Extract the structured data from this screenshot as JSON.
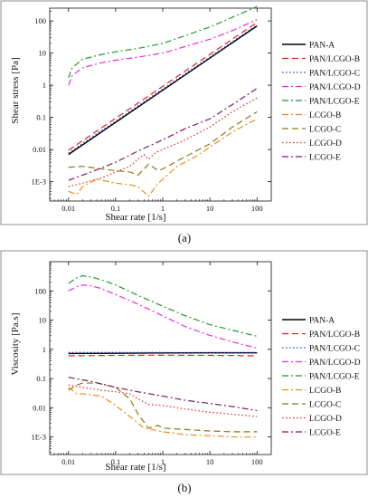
{
  "panels": [
    {
      "caption": "(a)",
      "chart_data": {
        "type": "line",
        "xlabel": "Shear rate [1/s]",
        "ylabel": "Shear stress [Pa]",
        "xscale": "log",
        "yscale": "log",
        "xlim": [
          0.004,
          200
        ],
        "ylim": [
          0.00025,
          250
        ],
        "x_ticks": [
          0.01,
          0.1,
          1,
          10,
          100
        ],
        "x_tick_labels": [
          "0.01",
          "0.1",
          "1",
          "10",
          "100"
        ],
        "y_ticks": [
          0.001,
          0.01,
          0.1,
          1,
          10,
          100
        ],
        "y_tick_labels": [
          "1E-3",
          "0.01",
          "0.1",
          "1",
          "10",
          "100"
        ],
        "legend_position": "right",
        "grid": false,
        "series": [
          {
            "name": "PAN-A",
            "color": "#000000",
            "dash": "solid",
            "points": [
              [
                0.01,
                0.007
              ],
              [
                100,
                70
              ]
            ]
          },
          {
            "name": "PAN/LCGO-B",
            "color": "#e8221e",
            "dash": "dash",
            "points": [
              [
                0.01,
                0.0095
              ],
              [
                100,
                90
              ]
            ]
          },
          {
            "name": "PAN/LCGO-C",
            "color": "#2446c8",
            "dash": "dot",
            "points": [
              [
                0.01,
                0.0078
              ],
              [
                100,
                75
              ]
            ]
          },
          {
            "name": "PAN/LCGO-D",
            "color": "#e62ee0",
            "dash": "dashdot",
            "points": [
              [
                0.01,
                1.0
              ],
              [
                0.012,
                2.0
              ],
              [
                0.02,
                3.5
              ],
              [
                0.05,
                5
              ],
              [
                0.1,
                6
              ],
              [
                0.3,
                7.5
              ],
              [
                1,
                10
              ],
              [
                3,
                16
              ],
              [
                10,
                27
              ],
              [
                30,
                50
              ],
              [
                100,
                110
              ]
            ]
          },
          {
            "name": "PAN/LCGO-E",
            "color": "#1f9a2a",
            "dash": "dashdot",
            "points": [
              [
                0.01,
                1.7
              ],
              [
                0.012,
                3.5
              ],
              [
                0.02,
                6.5
              ],
              [
                0.05,
                9
              ],
              [
                0.1,
                11
              ],
              [
                0.3,
                14
              ],
              [
                1,
                20
              ],
              [
                3,
                35
              ],
              [
                10,
                65
              ],
              [
                30,
                130
              ],
              [
                100,
                280
              ]
            ]
          },
          {
            "name": "LCGO-B",
            "color": "#f08c1a",
            "dash": "dashdot",
            "points": [
              [
                0.01,
                0.0005
              ],
              [
                0.015,
                0.0004
              ],
              [
                0.02,
                0.0007
              ],
              [
                0.04,
                0.0012
              ],
              [
                0.07,
                0.001
              ],
              [
                0.1,
                0.0009
              ],
              [
                0.2,
                0.0008
              ],
              [
                0.3,
                0.0007
              ],
              [
                0.5,
                0.00035
              ],
              [
                0.8,
                0.0009
              ],
              [
                1,
                0.0012
              ],
              [
                2,
                0.003
              ],
              [
                5,
                0.006
              ],
              [
                10,
                0.012
              ],
              [
                30,
                0.035
              ],
              [
                100,
                0.09
              ]
            ]
          },
          {
            "name": "LCGO-C",
            "color": "#8a7a12",
            "dash": "dash",
            "points": [
              [
                0.01,
                0.0028
              ],
              [
                0.02,
                0.003
              ],
              [
                0.05,
                0.0025
              ],
              [
                0.1,
                0.0022
              ],
              [
                0.2,
                0.002
              ],
              [
                0.3,
                0.0016
              ],
              [
                0.5,
                0.0035
              ],
              [
                0.8,
                0.0022
              ],
              [
                1,
                0.0025
              ],
              [
                3,
                0.006
              ],
              [
                10,
                0.015
              ],
              [
                30,
                0.05
              ],
              [
                100,
                0.15
              ]
            ]
          },
          {
            "name": "LCGO-D",
            "color": "#e8221e",
            "dash": "dot",
            "points": [
              [
                0.01,
                0.0007
              ],
              [
                0.02,
                0.0009
              ],
              [
                0.05,
                0.0013
              ],
              [
                0.1,
                0.002
              ],
              [
                0.2,
                0.003
              ],
              [
                0.3,
                0.005
              ],
              [
                0.4,
                0.007
              ],
              [
                0.5,
                0.005
              ],
              [
                0.7,
                0.008
              ],
              [
                1,
                0.01
              ],
              [
                3,
                0.02
              ],
              [
                10,
                0.05
              ],
              [
                30,
                0.15
              ],
              [
                100,
                0.4
              ]
            ]
          },
          {
            "name": "LCGO-E",
            "color": "#7a1a6e",
            "dash": "dashdot",
            "points": [
              [
                0.01,
                0.0011
              ],
              [
                0.03,
                0.002
              ],
              [
                0.1,
                0.004
              ],
              [
                0.3,
                0.009
              ],
              [
                1,
                0.02
              ],
              [
                3,
                0.045
              ],
              [
                10,
                0.09
              ],
              [
                30,
                0.25
              ],
              [
                100,
                0.8
              ]
            ]
          }
        ]
      }
    },
    {
      "caption": "(b)",
      "chart_data": {
        "type": "line",
        "xlabel": "Shear rate [1/s]",
        "ylabel": "Viscosity [Pa.s]",
        "xscale": "log",
        "yscale": "log",
        "xlim": [
          0.004,
          200
        ],
        "ylim": [
          0.00025,
          1000
        ],
        "x_ticks": [
          0.01,
          0.1,
          1,
          10,
          100
        ],
        "x_tick_labels": [
          "0.01",
          "0.1",
          "1",
          "10",
          "100"
        ],
        "y_ticks": [
          0.001,
          0.01,
          0.1,
          1,
          10,
          100
        ],
        "y_tick_labels": [
          "1E-3",
          "0.01",
          "0.1",
          "1",
          "10",
          "100"
        ],
        "legend_position": "right",
        "grid": false,
        "series": [
          {
            "name": "PAN-A",
            "color": "#000000",
            "dash": "solid",
            "points": [
              [
                0.01,
                0.72
              ],
              [
                0.1,
                0.73
              ],
              [
                1,
                0.75
              ],
              [
                10,
                0.76
              ],
              [
                100,
                0.76
              ]
            ]
          },
          {
            "name": "PAN/LCGO-B",
            "color": "#e8221e",
            "dash": "dash",
            "points": [
              [
                0.01,
                0.6
              ],
              [
                0.1,
                0.62
              ],
              [
                1,
                0.63
              ],
              [
                10,
                0.62
              ],
              [
                100,
                0.6
              ]
            ]
          },
          {
            "name": "PAN/LCGO-C",
            "color": "#2446c8",
            "dash": "dot",
            "points": [
              [
                0.01,
                0.78
              ],
              [
                0.1,
                0.78
              ],
              [
                1,
                0.78
              ],
              [
                10,
                0.77
              ],
              [
                100,
                0.76
              ]
            ]
          },
          {
            "name": "PAN/LCGO-D",
            "color": "#e62ee0",
            "dash": "dashdot",
            "points": [
              [
                0.01,
                100
              ],
              [
                0.015,
                140
              ],
              [
                0.02,
                160
              ],
              [
                0.03,
                150
              ],
              [
                0.05,
                120
              ],
              [
                0.1,
                75
              ],
              [
                0.3,
                35
              ],
              [
                1,
                14
              ],
              [
                3,
                6
              ],
              [
                10,
                3
              ],
              [
                30,
                1.8
              ],
              [
                100,
                1.1
              ]
            ]
          },
          {
            "name": "PAN/LCGO-E",
            "color": "#1f9a2a",
            "dash": "dashdot",
            "points": [
              [
                0.01,
                180
              ],
              [
                0.015,
                280
              ],
              [
                0.02,
                330
              ],
              [
                0.03,
                300
              ],
              [
                0.05,
                240
              ],
              [
                0.1,
                160
              ],
              [
                0.3,
                70
              ],
              [
                1,
                30
              ],
              [
                3,
                14
              ],
              [
                10,
                7
              ],
              [
                30,
                4.5
              ],
              [
                100,
                2.8
              ]
            ]
          },
          {
            "name": "LCGO-B",
            "color": "#f08c1a",
            "dash": "dashdot",
            "points": [
              [
                0.01,
                0.05
              ],
              [
                0.015,
                0.03
              ],
              [
                0.02,
                0.03
              ],
              [
                0.05,
                0.025
              ],
              [
                0.1,
                0.012
              ],
              [
                0.2,
                0.005
              ],
              [
                0.4,
                0.002
              ],
              [
                0.6,
                0.0018
              ],
              [
                1,
                0.0015
              ],
              [
                3,
                0.0012
              ],
              [
                10,
                0.0011
              ],
              [
                30,
                0.001
              ],
              [
                100,
                0.001
              ]
            ]
          },
          {
            "name": "LCGO-C",
            "color": "#8a7a12",
            "dash": "dash",
            "points": [
              [
                0.01,
                0.04
              ],
              [
                0.015,
                0.06
              ],
              [
                0.02,
                0.07
              ],
              [
                0.04,
                0.07
              ],
              [
                0.1,
                0.05
              ],
              [
                0.2,
                0.02
              ],
              [
                0.3,
                0.006
              ],
              [
                0.5,
                0.002
              ],
              [
                0.8,
                0.0025
              ],
              [
                1,
                0.002
              ],
              [
                3,
                0.0018
              ],
              [
                10,
                0.0016
              ],
              [
                30,
                0.0015
              ],
              [
                100,
                0.0015
              ]
            ]
          },
          {
            "name": "LCGO-D",
            "color": "#e8221e",
            "dash": "dot",
            "points": [
              [
                0.01,
                0.06
              ],
              [
                0.02,
                0.05
              ],
              [
                0.05,
                0.04
              ],
              [
                0.1,
                0.035
              ],
              [
                0.2,
                0.03
              ],
              [
                0.3,
                0.02
              ],
              [
                0.5,
                0.013
              ],
              [
                1,
                0.012
              ],
              [
                3,
                0.009
              ],
              [
                10,
                0.007
              ],
              [
                30,
                0.006
              ],
              [
                100,
                0.005
              ]
            ]
          },
          {
            "name": "LCGO-E",
            "color": "#7a1a6e",
            "dash": "dashdot",
            "points": [
              [
                0.01,
                0.11
              ],
              [
                0.03,
                0.08
              ],
              [
                0.1,
                0.05
              ],
              [
                0.3,
                0.035
              ],
              [
                1,
                0.025
              ],
              [
                3,
                0.018
              ],
              [
                10,
                0.014
              ],
              [
                30,
                0.011
              ],
              [
                100,
                0.008
              ]
            ]
          }
        ]
      }
    }
  ]
}
